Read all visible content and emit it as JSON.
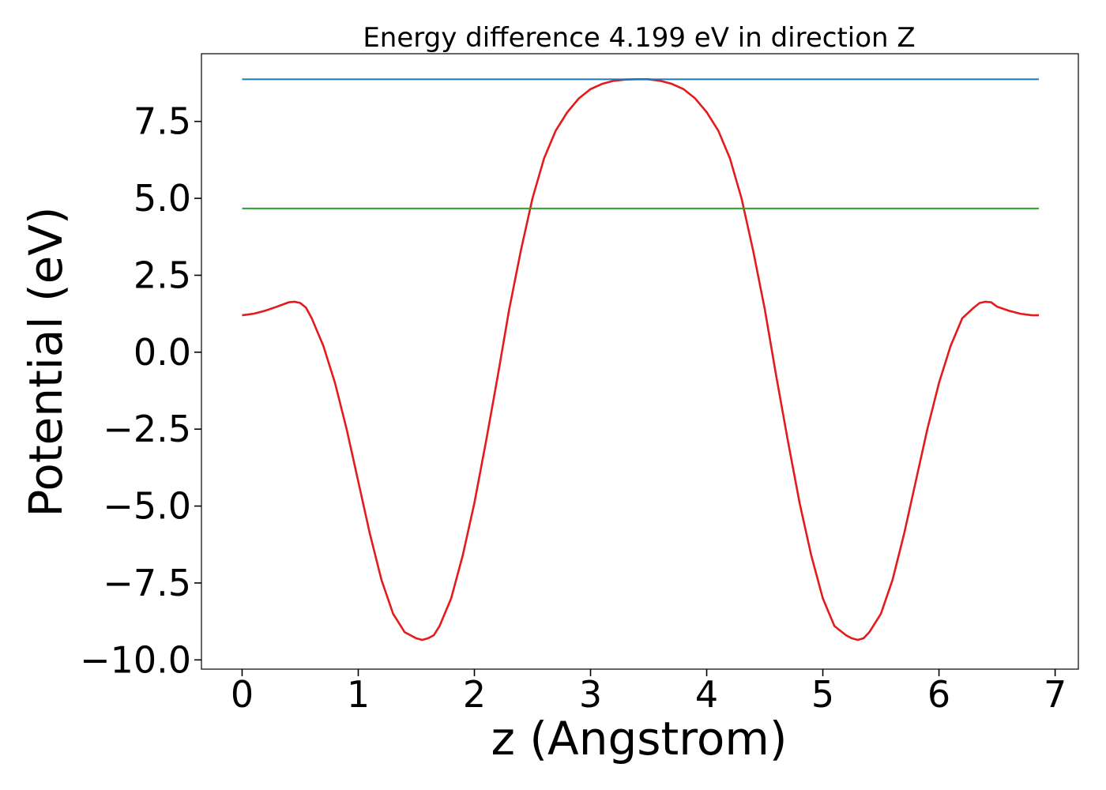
{
  "chart_data": {
    "type": "line",
    "title": "Energy difference 4.199 eV in direction Z",
    "xlabel": "z (Angstrom)",
    "ylabel": "Potential (eV)",
    "xlim": [
      -0.35,
      7.2
    ],
    "ylim": [
      -10.3,
      9.7
    ],
    "xticks": [
      0,
      1,
      2,
      3,
      4,
      5,
      6,
      7
    ],
    "xtick_labels": [
      "0",
      "1",
      "2",
      "3",
      "4",
      "5",
      "6",
      "7"
    ],
    "yticks": [
      7.5,
      5.0,
      2.5,
      0.0,
      -2.5,
      -5.0,
      -7.5,
      -10.0
    ],
    "ytick_labels": [
      "7.5",
      "5.0",
      "2.5",
      "0.0",
      "−2.5",
      "−5.0",
      "−7.5",
      "−10.0"
    ],
    "grid": false,
    "legend": "none",
    "series": [
      {
        "color": "#e41a1c",
        "x": [
          0.0,
          0.1,
          0.2,
          0.3,
          0.4,
          0.45,
          0.5,
          0.55,
          0.6,
          0.7,
          0.8,
          0.9,
          1.0,
          1.1,
          1.2,
          1.3,
          1.4,
          1.5,
          1.55,
          1.6,
          1.65,
          1.7,
          1.8,
          1.9,
          2.0,
          2.1,
          2.2,
          2.3,
          2.4,
          2.5,
          2.6,
          2.7,
          2.8,
          2.9,
          3.0,
          3.1,
          3.2,
          3.3,
          3.4,
          3.45,
          3.5,
          3.6,
          3.7,
          3.8,
          3.9,
          4.0,
          4.1,
          4.2,
          4.3,
          4.4,
          4.5,
          4.6,
          4.7,
          4.8,
          4.9,
          5.0,
          5.1,
          5.2,
          5.25,
          5.3,
          5.35,
          5.4,
          5.5,
          5.6,
          5.7,
          5.8,
          5.9,
          6.0,
          6.1,
          6.2,
          6.3,
          6.35,
          6.4,
          6.45,
          6.5,
          6.6,
          6.7,
          6.8,
          6.86
        ],
        "y": [
          1.2,
          1.25,
          1.35,
          1.48,
          1.62,
          1.64,
          1.6,
          1.45,
          1.1,
          0.2,
          -1.0,
          -2.5,
          -4.2,
          -5.9,
          -7.4,
          -8.5,
          -9.1,
          -9.3,
          -9.35,
          -9.3,
          -9.2,
          -8.9,
          -8.0,
          -6.6,
          -4.9,
          -2.9,
          -0.8,
          1.4,
          3.3,
          5.0,
          6.3,
          7.2,
          7.8,
          8.25,
          8.55,
          8.72,
          8.82,
          8.86,
          8.87,
          8.87,
          8.87,
          8.82,
          8.72,
          8.55,
          8.25,
          7.8,
          7.2,
          6.3,
          5.0,
          3.3,
          1.4,
          -0.8,
          -2.9,
          -4.9,
          -6.6,
          -8.0,
          -8.9,
          -9.2,
          -9.3,
          -9.35,
          -9.3,
          -9.1,
          -8.5,
          -7.4,
          -5.9,
          -4.2,
          -2.5,
          -1.0,
          0.2,
          1.1,
          1.45,
          1.6,
          1.64,
          1.62,
          1.48,
          1.35,
          1.25,
          1.2,
          1.2
        ]
      },
      {
        "color": "#1f77b4",
        "x": [
          0.0,
          6.86
        ],
        "y": [
          8.87,
          8.87
        ]
      },
      {
        "color": "#2ca02c",
        "x": [
          0.0,
          6.86
        ],
        "y": [
          4.67,
          4.67
        ]
      }
    ]
  }
}
